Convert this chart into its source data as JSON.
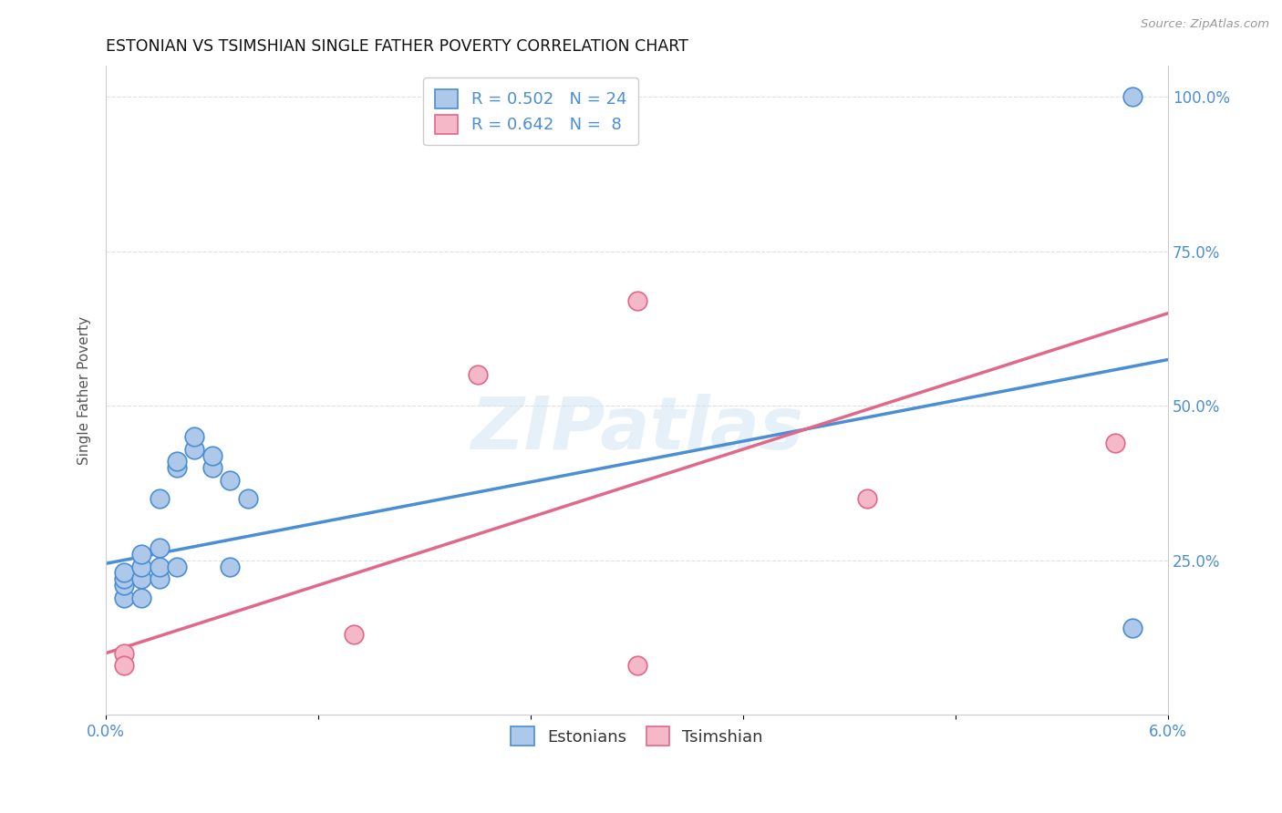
{
  "title": "ESTONIAN VS TSIMSHIAN SINGLE FATHER POVERTY CORRELATION CHART",
  "source": "Source: ZipAtlas.com",
  "ylabel": "Single Father Poverty",
  "xlim": [
    0.0,
    0.06
  ],
  "ylim": [
    0.0,
    1.05
  ],
  "ytick_values": [
    0.25,
    0.5,
    0.75,
    1.0
  ],
  "xtick_values": [
    0.0,
    0.012,
    0.024,
    0.036,
    0.048,
    0.06
  ],
  "estonian_color": "#adc8e8",
  "tsimshian_color": "#f5b8c8",
  "line_estonian_color": "#4a8ed4",
  "line_tsimshian_color": "#e06888",
  "R_estonian": 0.502,
  "N_estonian": 24,
  "R_tsimshian": 0.642,
  "N_tsimshian": 8,
  "estonian_x": [
    0.001,
    0.001,
    0.001,
    0.001,
    0.002,
    0.002,
    0.002,
    0.002,
    0.003,
    0.003,
    0.003,
    0.004,
    0.004,
    0.004,
    0.005,
    0.005,
    0.006,
    0.006,
    0.007,
    0.007,
    0.008,
    0.003,
    0.058,
    0.058
  ],
  "estonian_y": [
    0.19,
    0.21,
    0.22,
    0.23,
    0.19,
    0.22,
    0.24,
    0.26,
    0.22,
    0.24,
    0.27,
    0.4,
    0.41,
    0.24,
    0.43,
    0.45,
    0.4,
    0.42,
    0.38,
    0.24,
    0.35,
    0.35,
    0.14,
    1.0
  ],
  "tsimshian_x": [
    0.001,
    0.001,
    0.014,
    0.021,
    0.03,
    0.043,
    0.057,
    0.03
  ],
  "tsimshian_y": [
    0.1,
    0.08,
    0.13,
    0.55,
    0.08,
    0.35,
    0.44,
    0.67
  ],
  "line_est_x0": 0.0,
  "line_est_y0": 0.245,
  "line_est_x1": 0.06,
  "line_est_y1": 0.575,
  "line_tsim_x0": 0.0,
  "line_tsim_y0": 0.1,
  "line_tsim_x1": 0.06,
  "line_tsim_y1": 0.65,
  "watermark_text": "ZIPatlas",
  "background_color": "#ffffff",
  "grid_color": "#e0e0e0",
  "tick_color": "#4a8ed4",
  "legend_fontsize": 13,
  "title_fontsize": 12.5,
  "ylabel_fontsize": 11
}
